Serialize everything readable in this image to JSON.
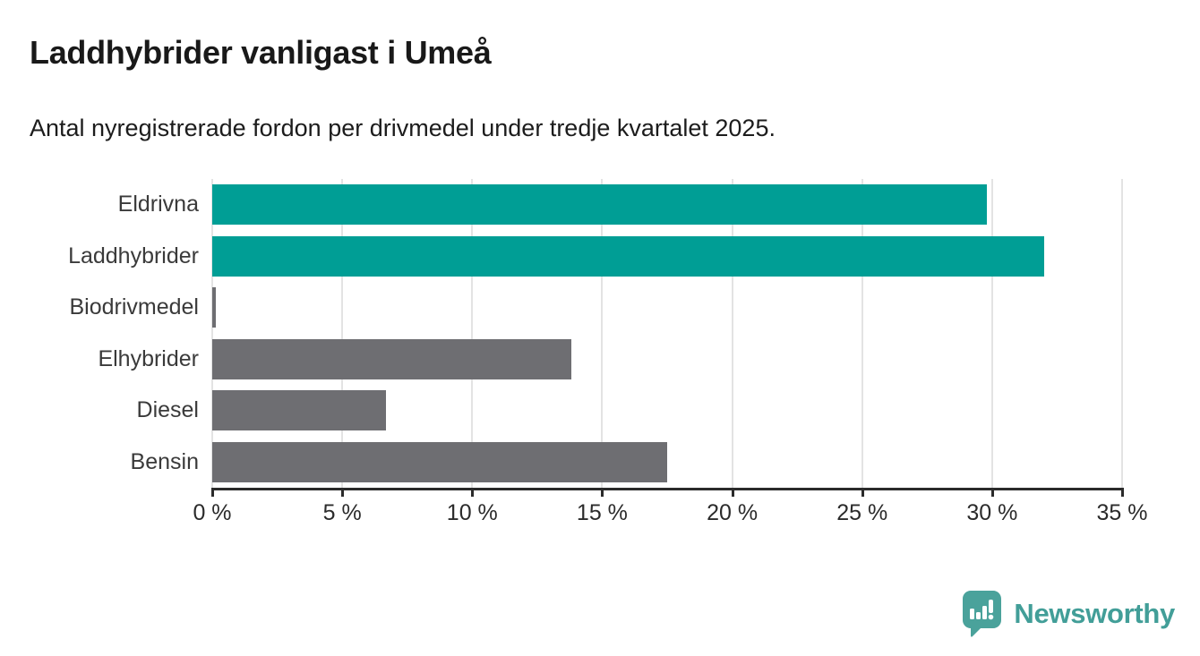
{
  "page": {
    "title": "Laddhybrider vanligast i Umeå",
    "subtitle": "Antal nyregistrerade fordon per drivmedel under tredje kvartalet 2025."
  },
  "chart_data": {
    "type": "bar",
    "orientation": "horizontal",
    "title": "Laddhybrider vanligast i Umeå",
    "subtitle": "Antal nyregistrerade fordon per drivmedel under tredje kvartalet 2025.",
    "categories": [
      "Eldrivna",
      "Laddhybrider",
      "Biodrivmedel",
      "Elhybrider",
      "Diesel",
      "Bensin"
    ],
    "values": [
      29.8,
      32.0,
      0.15,
      13.8,
      6.7,
      17.5
    ],
    "unit": "%",
    "xlim": [
      0,
      35
    ],
    "x_ticks": [
      0,
      5,
      10,
      15,
      20,
      25,
      30,
      35
    ],
    "x_tick_labels": [
      "0 %",
      "5 %",
      "10 %",
      "15 %",
      "20 %",
      "25 %",
      "30 %",
      "35 %"
    ],
    "bar_colors": [
      "#009E95",
      "#009E95",
      "#6E6E72",
      "#6E6E72",
      "#6E6E72",
      "#6E6E72"
    ],
    "highlight_color": "#009E95",
    "default_bar_color": "#6E6E72",
    "grid": true,
    "gridline_color": "#e3e3e3",
    "axis_color": "#2b2b2b",
    "legend": "none"
  },
  "branding": {
    "logo_text": "Newsworthy",
    "logo_color": "#429E98"
  }
}
